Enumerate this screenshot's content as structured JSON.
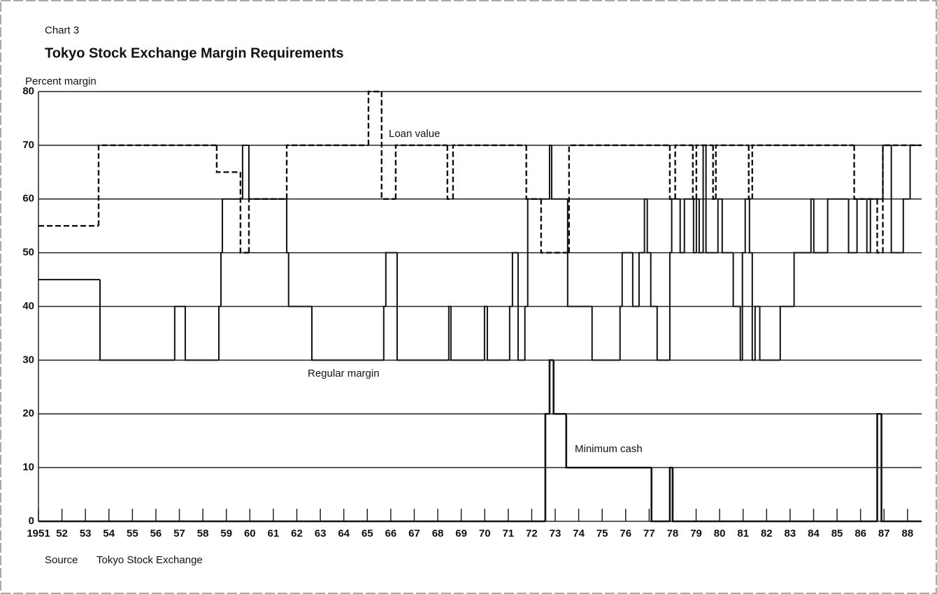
{
  "chart_data": {
    "type": "step",
    "supertitle": "Chart 3",
    "title": "Tokyo Stock Exchange Margin Requirements",
    "y_label": "Percent margin",
    "source_label": "Source",
    "source": "Tokyo Stock Exchange",
    "xlim": [
      1951,
      1988.6
    ],
    "ylim": [
      0,
      80
    ],
    "yticks": [
      0,
      10,
      20,
      30,
      40,
      50,
      60,
      70,
      80
    ],
    "xticks": [
      1951,
      {
        "value": 1952,
        "label": "52"
      },
      {
        "value": 1953,
        "label": "53"
      },
      {
        "value": 1954,
        "label": "54"
      },
      {
        "value": 1955,
        "label": "55"
      },
      {
        "value": 1956,
        "label": "56"
      },
      {
        "value": 1957,
        "label": "57"
      },
      {
        "value": 1958,
        "label": "58"
      },
      {
        "value": 1959,
        "label": "59"
      },
      {
        "value": 1960,
        "label": "60"
      },
      {
        "value": 1961,
        "label": "61"
      },
      {
        "value": 1962,
        "label": "62"
      },
      {
        "value": 1963,
        "label": "63"
      },
      {
        "value": 1964,
        "label": "64"
      },
      {
        "value": 1965,
        "label": "65"
      },
      {
        "value": 1966,
        "label": "66"
      },
      {
        "value": 1967,
        "label": "67"
      },
      {
        "value": 1968,
        "label": "68"
      },
      {
        "value": 1969,
        "label": "69"
      },
      {
        "value": 1970,
        "label": "70"
      },
      {
        "value": 1971,
        "label": "71"
      },
      {
        "value": 1972,
        "label": "72"
      },
      {
        "value": 1973,
        "label": "73"
      },
      {
        "value": 1974,
        "label": "74"
      },
      {
        "value": 1975,
        "label": "75"
      },
      {
        "value": 1976,
        "label": "76"
      },
      {
        "value": 1977,
        "label": "77"
      },
      {
        "value": 1978,
        "label": "78"
      },
      {
        "value": 1979,
        "label": "79"
      },
      {
        "value": 1980,
        "label": "80"
      },
      {
        "value": 1981,
        "label": "81"
      },
      {
        "value": 1982,
        "label": "82"
      },
      {
        "value": 1983,
        "label": "83"
      },
      {
        "value": 1984,
        "label": "84"
      },
      {
        "value": 1985,
        "label": "85"
      },
      {
        "value": 1986,
        "label": "86"
      },
      {
        "value": 1987,
        "label": "87"
      },
      {
        "value": 1988,
        "label": "88"
      }
    ],
    "grid": true,
    "series": [
      {
        "name": "Loan value",
        "color": "#111111",
        "dashed": true,
        "width": 2.4,
        "x": [
          1951,
          1953.56,
          1958.59,
          1959.6,
          1959.96,
          1961.57,
          1965.05,
          1965.61,
          1966.21,
          1968.41,
          1968.65,
          1971.77,
          1972.4,
          1973.59,
          1977.88,
          1978.11,
          1978.86,
          1979.01,
          1979.72,
          1979.84,
          1981.24,
          1981.39,
          1985.73,
          1986.71,
          1986.95,
          1988.6
        ],
        "values": [
          55,
          70,
          65,
          50,
          60,
          70,
          80,
          60,
          70,
          60,
          70,
          60,
          50,
          70,
          60,
          70,
          60,
          70,
          60,
          70,
          60,
          70,
          60,
          50,
          70,
          70
        ]
      },
      {
        "name": "Regular margin",
        "color": "#111111",
        "dashed": false,
        "width": 2,
        "x": [
          1951,
          1953.62,
          1956.8,
          1957.25,
          1958.68,
          1958.77,
          1958.83,
          1959.69,
          1959.96,
          1961.57,
          1961.65,
          1962.64,
          1965.7,
          1965.79,
          1966.27,
          1968.47,
          1968.56,
          1969.99,
          1970.11,
          1971.06,
          1971.18,
          1971.42,
          1971.71,
          1971.83,
          1972.76,
          1972.85,
          1973.53,
          1974.57,
          1975.76,
          1975.85,
          1976.3,
          1976.57,
          1976.8,
          1976.92,
          1977.07,
          1977.34,
          1977.88,
          1977.96,
          1978.32,
          1978.5,
          1978.89,
          1979.01,
          1979.13,
          1979.3,
          1979.42,
          1979.93,
          1980.11,
          1980.58,
          1980.88,
          1980.97,
          1981.09,
          1981.27,
          1981.39,
          1981.51,
          1981.71,
          1982.58,
          1983.17,
          1983.89,
          1984.01,
          1984.6,
          1985.49,
          1985.85,
          1986.27,
          1986.42,
          1986.95,
          1987.31,
          1987.82,
          1988.11,
          1988.6
        ],
        "values": [
          45,
          30,
          40,
          30,
          40,
          50,
          60,
          70,
          60,
          50,
          40,
          30,
          40,
          50,
          30,
          40,
          30,
          40,
          30,
          40,
          50,
          30,
          40,
          60,
          70,
          60,
          40,
          30,
          40,
          50,
          40,
          50,
          60,
          50,
          40,
          30,
          50,
          60,
          50,
          60,
          50,
          60,
          50,
          70,
          50,
          60,
          50,
          40,
          30,
          50,
          60,
          50,
          30,
          40,
          30,
          40,
          50,
          60,
          50,
          60,
          50,
          60,
          50,
          60,
          70,
          50,
          60,
          70,
          70
        ]
      },
      {
        "name": "Minimum cash",
        "color": "#111111",
        "dashed": false,
        "width": 2.6,
        "x": [
          1951,
          1972.58,
          1972.76,
          1972.93,
          1973.47,
          1977.1,
          1977.88,
          1978.0,
          1986.71,
          1986.89,
          1988.6
        ],
        "values": [
          0,
          20,
          30,
          20,
          10,
          0,
          10,
          0,
          20,
          0,
          0
        ]
      }
    ]
  }
}
